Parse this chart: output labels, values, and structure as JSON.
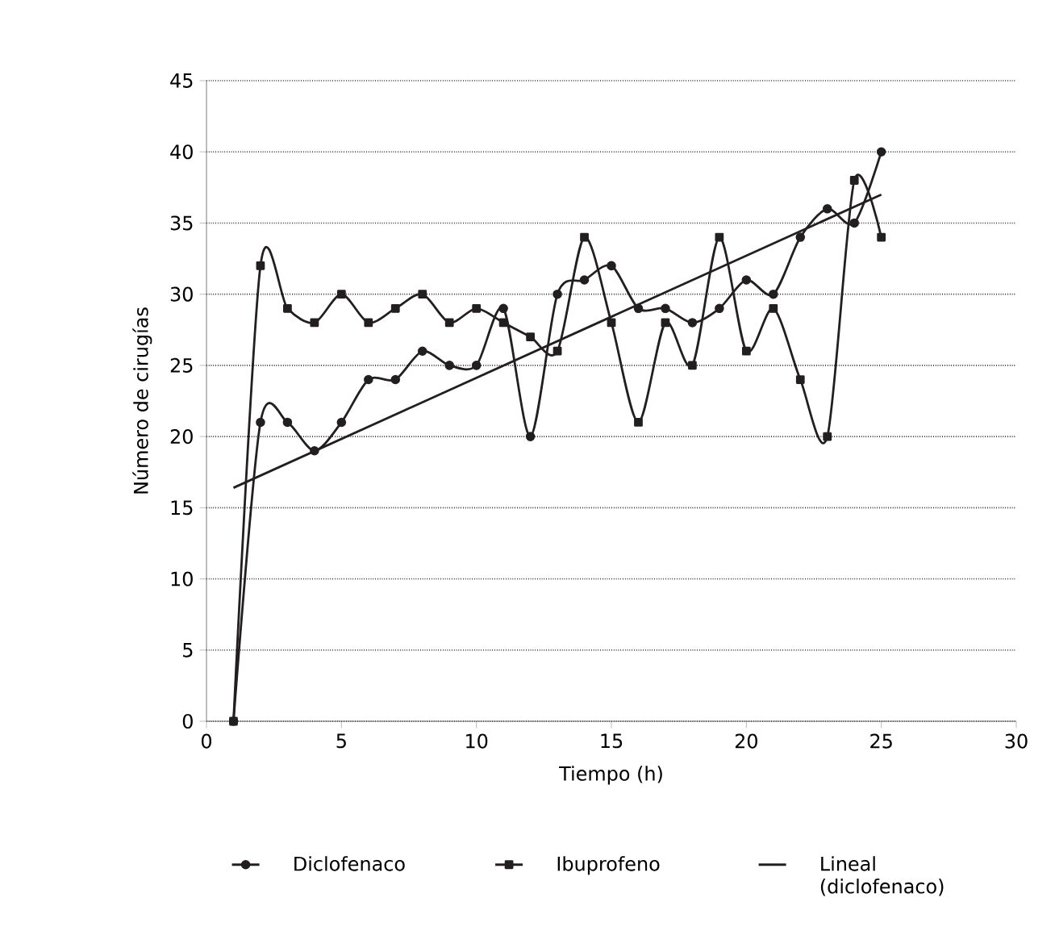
{
  "chart_data": {
    "type": "line",
    "xlabel": "Tiempo (h)",
    "ylabel": "Número de cirugías",
    "xlim": [
      0,
      30
    ],
    "xticks": [
      0,
      5,
      10,
      15,
      20,
      25,
      30
    ],
    "ylim": [
      0,
      45
    ],
    "yticks": [
      0,
      5,
      10,
      15,
      20,
      25,
      30,
      35,
      40,
      45
    ],
    "grid": "y",
    "legend": "bottom",
    "line_style": "solid",
    "x": [
      1,
      2,
      3,
      4,
      5,
      6,
      7,
      8,
      9,
      10,
      11,
      12,
      13,
      14,
      15,
      16,
      17,
      18,
      19,
      20,
      21,
      22,
      23,
      24,
      25
    ],
    "series": [
      {
        "name": "Diclofenaco",
        "color": "#231f20",
        "marker": "circle",
        "values": [
          0,
          21,
          21,
          19,
          21,
          24,
          24,
          26,
          25,
          25,
          29,
          20,
          30,
          31,
          32,
          29,
          29,
          28,
          29,
          31,
          30,
          34,
          36,
          35,
          40
        ]
      },
      {
        "name": "Ibuprofeno",
        "color": "#231f20",
        "marker": "square",
        "values": [
          0,
          32,
          29,
          28,
          30,
          28,
          29,
          30,
          28,
          29,
          28,
          27,
          26,
          34,
          28,
          21,
          28,
          25,
          34,
          26,
          29,
          24,
          20,
          38,
          34
        ]
      },
      {
        "name": "Lineal (diclofenaco)",
        "color": "#231f20",
        "marker": "none",
        "x": [
          1,
          25
        ],
        "values": [
          16.4,
          37
        ]
      }
    ]
  }
}
